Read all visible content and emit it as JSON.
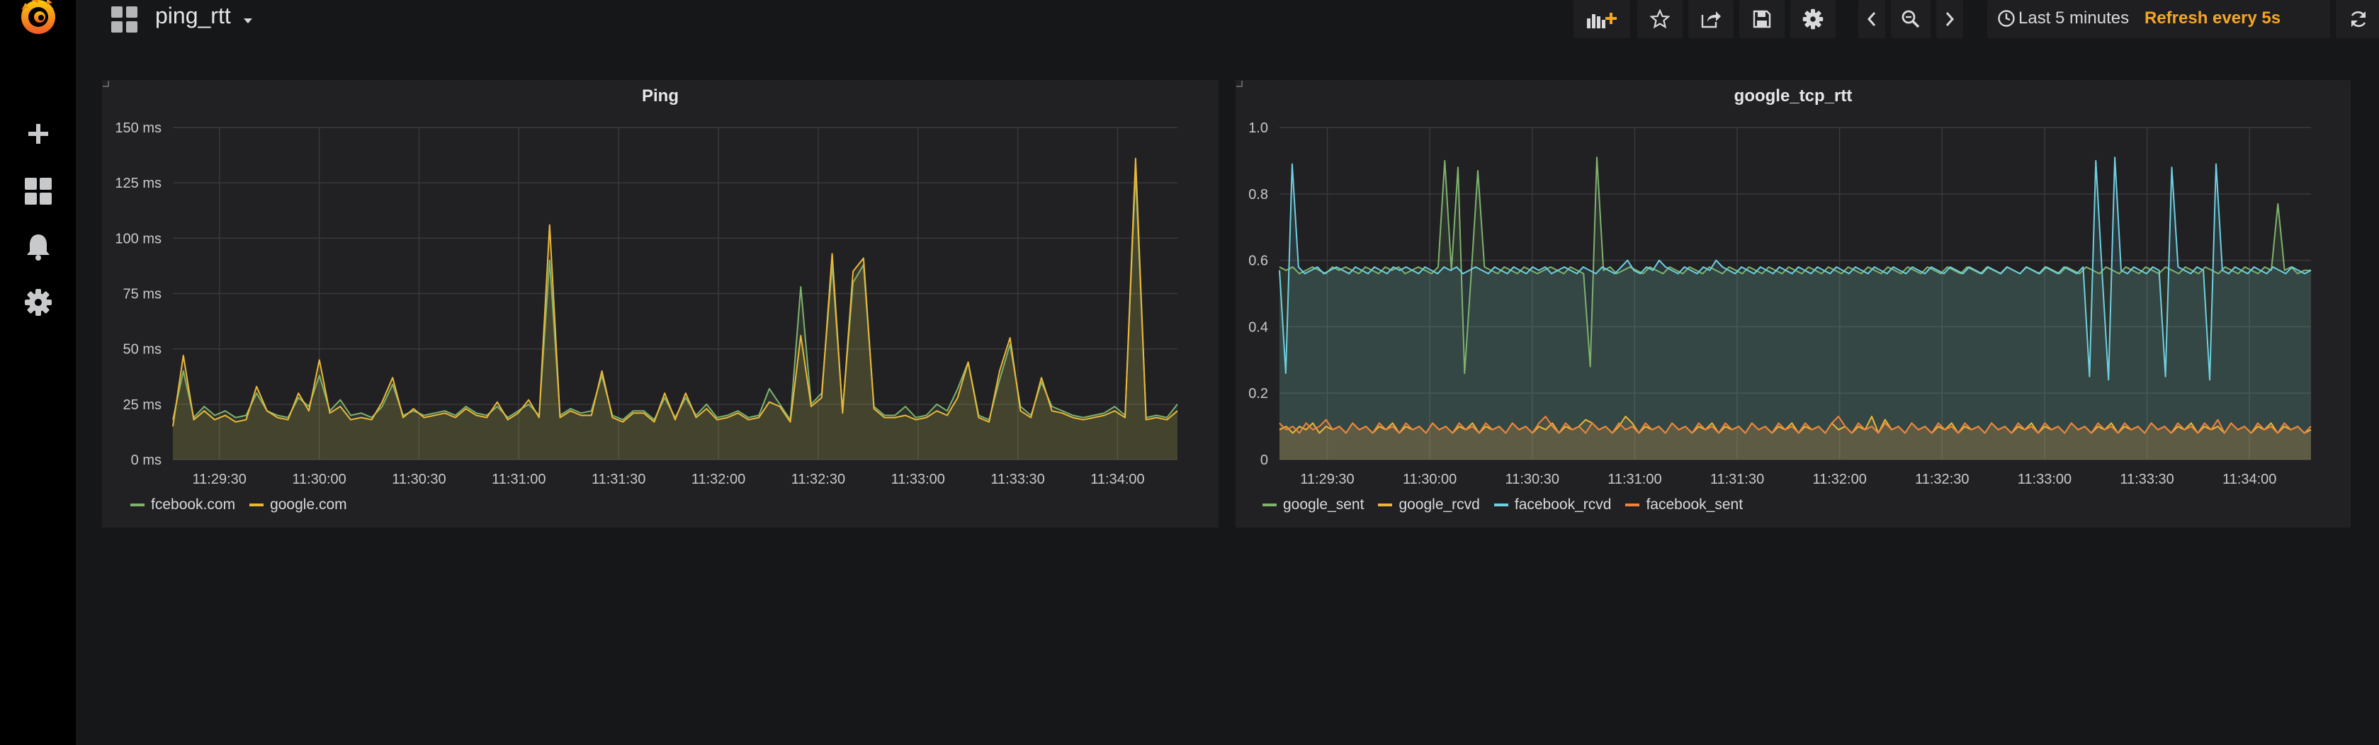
{
  "navbar": {
    "dashboard_title": "ping_rtt",
    "time_range": "Last 5 minutes",
    "refresh": "Refresh every 5s"
  },
  "sidemenu": {
    "items": [
      "grafana-logo-icon",
      "plus-icon",
      "dashboards-icon",
      "bell-icon",
      "gear-icon"
    ]
  },
  "colors": {
    "green": "#7eb26d",
    "yellow": "#eab839",
    "cyan": "#6ed0e0",
    "orange": "#ef843c",
    "accent": "#f5a623"
  },
  "panels": [
    {
      "title": "Ping",
      "legend": [
        {
          "name": "fcebook.com",
          "color": "#7eb26d"
        },
        {
          "name": "google.com",
          "color": "#eab839"
        }
      ],
      "chart_data": {
        "type": "line",
        "ylabel_ticks": [
          "0 ms",
          "25 ms",
          "50 ms",
          "75 ms",
          "100 ms",
          "125 ms",
          "150 ms"
        ],
        "ylim": [
          0,
          150
        ],
        "xlim": [
          "11:29:16",
          "11:34:18"
        ],
        "x_ticks": [
          "11:29:30",
          "11:30:00",
          "11:30:30",
          "11:31:00",
          "11:31:30",
          "11:32:00",
          "11:32:30",
          "11:33:00",
          "11:33:30",
          "11:34:00"
        ],
        "grid": true,
        "fill": true,
        "x_interval_seconds": 3,
        "series": [
          {
            "name": "fcebook.com",
            "color": "#7eb26d",
            "values": [
              18,
              40,
              19,
              24,
              20,
              22,
              19,
              20,
              30,
              22,
              20,
              19,
              28,
              24,
              38,
              22,
              27,
              20,
              21,
              19,
              24,
              34,
              20,
              22,
              20,
              21,
              22,
              20,
              24,
              21,
              20,
              24,
              19,
              22,
              25,
              20,
              90,
              20,
              23,
              21,
              22,
              38,
              20,
              18,
              22,
              22,
              18,
              28,
              19,
              28,
              20,
              25,
              19,
              20,
              22,
              19,
              20,
              32,
              25,
              18,
              78,
              25,
              30,
              88,
              22,
              80,
              88,
              24,
              20,
              20,
              24,
              19,
              20,
              25,
              22,
              32,
              44,
              20,
              18,
              36,
              52,
              24,
              20,
              35,
              24,
              22,
              20,
              19,
              20,
              21,
              24,
              20,
              130,
              19,
              20,
              19,
              25
            ]
          },
          {
            "name": "google.com",
            "color": "#eab839",
            "values": [
              15,
              47,
              18,
              22,
              18,
              20,
              17,
              18,
              33,
              22,
              19,
              18,
              30,
              22,
              45,
              21,
              24,
              18,
              19,
              18,
              26,
              37,
              19,
              23,
              19,
              20,
              21,
              19,
              23,
              20,
              19,
              26,
              18,
              21,
              27,
              19,
              106,
              19,
              22,
              20,
              20,
              40,
              19,
              17,
              21,
              21,
              17,
              30,
              18,
              30,
              19,
              23,
              18,
              19,
              21,
              18,
              19,
              26,
              24,
              17,
              56,
              24,
              28,
              93,
              21,
              85,
              91,
              23,
              19,
              19,
              20,
              18,
              19,
              22,
              20,
              28,
              44,
              19,
              17,
              40,
              55,
              22,
              19,
              37,
              22,
              21,
              19,
              18,
              19,
              20,
              22,
              19,
              136,
              18,
              19,
              18,
              22
            ]
          }
        ]
      }
    },
    {
      "title": "google_tcp_rtt",
      "legend": [
        {
          "name": "google_sent",
          "color": "#7eb26d"
        },
        {
          "name": "google_rcvd",
          "color": "#eab839"
        },
        {
          "name": "facebook_rcvd",
          "color": "#6ed0e0"
        },
        {
          "name": "facebook_sent",
          "color": "#ef843c"
        }
      ],
      "chart_data": {
        "type": "line",
        "ylabel_ticks": [
          "0",
          "0.2",
          "0.4",
          "0.6",
          "0.8",
          "1.0"
        ],
        "ylim": [
          0,
          1.0
        ],
        "xlim": [
          "11:29:16",
          "11:34:18"
        ],
        "x_ticks": [
          "11:29:30",
          "11:30:00",
          "11:30:30",
          "11:31:00",
          "11:31:30",
          "11:32:00",
          "11:32:30",
          "11:33:00",
          "11:33:30",
          "11:34:00"
        ],
        "grid": true,
        "fill": true,
        "x_interval_seconds": 2,
        "series": [
          {
            "name": "google_sent",
            "color": "#7eb26d",
            "values": [
              0.58,
              0.57,
              0.58,
              0.56,
              0.57,
              0.58,
              0.57,
              0.56,
              0.58,
              0.57,
              0.58,
              0.57,
              0.56,
              0.58,
              0.57,
              0.56,
              0.58,
              0.57,
              0.58,
              0.56,
              0.57,
              0.58,
              0.57,
              0.56,
              0.58,
              0.9,
              0.57,
              0.88,
              0.26,
              0.56,
              0.87,
              0.58,
              0.57,
              0.56,
              0.58,
              0.57,
              0.56,
              0.58,
              0.57,
              0.56,
              0.57,
              0.58,
              0.57,
              0.56,
              0.58,
              0.57,
              0.56,
              0.28,
              0.91,
              0.57,
              0.58,
              0.56,
              0.57,
              0.58,
              0.57,
              0.56,
              0.58,
              0.57,
              0.56,
              0.58,
              0.57,
              0.56,
              0.58,
              0.57,
              0.56,
              0.58,
              0.57,
              0.56,
              0.58,
              0.57,
              0.56,
              0.58,
              0.57,
              0.56,
              0.58,
              0.57,
              0.56,
              0.58,
              0.57,
              0.56,
              0.58,
              0.57,
              0.56,
              0.58,
              0.57,
              0.56,
              0.58,
              0.57,
              0.56,
              0.58,
              0.57,
              0.56,
              0.58,
              0.57,
              0.56,
              0.58,
              0.57,
              0.56,
              0.58,
              0.57,
              0.56,
              0.58,
              0.57,
              0.56,
              0.58,
              0.57,
              0.56,
              0.58,
              0.57,
              0.56,
              0.58,
              0.57,
              0.56,
              0.58,
              0.57,
              0.56,
              0.58,
              0.57,
              0.56,
              0.58,
              0.57,
              0.56,
              0.58,
              0.57,
              0.56,
              0.58,
              0.57,
              0.56,
              0.58,
              0.57,
              0.56,
              0.58,
              0.57,
              0.56,
              0.58,
              0.57,
              0.56,
              0.58,
              0.57,
              0.56,
              0.58,
              0.57,
              0.56,
              0.58,
              0.57,
              0.56,
              0.58,
              0.57,
              0.56,
              0.58,
              0.57,
              0.77,
              0.57,
              0.58,
              0.56,
              0.57,
              0.57
            ]
          },
          {
            "name": "google_rcvd",
            "color": "#eab839",
            "values": [
              0.09,
              0.1,
              0.08,
              0.1,
              0.09,
              0.11,
              0.08,
              0.1,
              0.09,
              0.1,
              0.08,
              0.11,
              0.09,
              0.1,
              0.08,
              0.1,
              0.09,
              0.11,
              0.08,
              0.1,
              0.09,
              0.1,
              0.08,
              0.11,
              0.09,
              0.1,
              0.08,
              0.1,
              0.09,
              0.11,
              0.08,
              0.1,
              0.09,
              0.1,
              0.08,
              0.11,
              0.09,
              0.1,
              0.08,
              0.1,
              0.09,
              0.11,
              0.08,
              0.1,
              0.09,
              0.1,
              0.12,
              0.11,
              0.09,
              0.1,
              0.08,
              0.1,
              0.13,
              0.11,
              0.08,
              0.1,
              0.09,
              0.1,
              0.08,
              0.11,
              0.09,
              0.1,
              0.08,
              0.1,
              0.09,
              0.11,
              0.08,
              0.1,
              0.09,
              0.1,
              0.08,
              0.11,
              0.09,
              0.1,
              0.08,
              0.1,
              0.09,
              0.11,
              0.08,
              0.1,
              0.09,
              0.1,
              0.08,
              0.11,
              0.09,
              0.1,
              0.08,
              0.1,
              0.09,
              0.13,
              0.08,
              0.12,
              0.09,
              0.1,
              0.08,
              0.11,
              0.09,
              0.1,
              0.08,
              0.1,
              0.09,
              0.11,
              0.08,
              0.1,
              0.09,
              0.1,
              0.08,
              0.11,
              0.09,
              0.1,
              0.08,
              0.1,
              0.09,
              0.11,
              0.08,
              0.1,
              0.09,
              0.1,
              0.08,
              0.11,
              0.09,
              0.1,
              0.08,
              0.1,
              0.09,
              0.11,
              0.08,
              0.1,
              0.09,
              0.1,
              0.08,
              0.11,
              0.09,
              0.1,
              0.08,
              0.1,
              0.09,
              0.11,
              0.08,
              0.1,
              0.09,
              0.1,
              0.08,
              0.11,
              0.09,
              0.1,
              0.08,
              0.1,
              0.09,
              0.11,
              0.08,
              0.1,
              0.09,
              0.1,
              0.08,
              0.09
            ]
          },
          {
            "name": "facebook_rcvd",
            "color": "#6ed0e0",
            "values": [
              0.57,
              0.26,
              0.89,
              0.58,
              0.56,
              0.57,
              0.58,
              0.56,
              0.57,
              0.58,
              0.57,
              0.56,
              0.58,
              0.57,
              0.56,
              0.58,
              0.57,
              0.56,
              0.58,
              0.57,
              0.58,
              0.57,
              0.56,
              0.58,
              0.57,
              0.56,
              0.58,
              0.57,
              0.58,
              0.56,
              0.57,
              0.58,
              0.57,
              0.56,
              0.58,
              0.57,
              0.56,
              0.58,
              0.57,
              0.56,
              0.58,
              0.57,
              0.58,
              0.56,
              0.57,
              0.58,
              0.57,
              0.56,
              0.58,
              0.57,
              0.56,
              0.58,
              0.57,
              0.56,
              0.58,
              0.6,
              0.57,
              0.56,
              0.58,
              0.57,
              0.6,
              0.58,
              0.57,
              0.56,
              0.58,
              0.57,
              0.56,
              0.58,
              0.57,
              0.6,
              0.58,
              0.57,
              0.56,
              0.58,
              0.57,
              0.56,
              0.58,
              0.57,
              0.56,
              0.58,
              0.57,
              0.56,
              0.58,
              0.57,
              0.56,
              0.58,
              0.57,
              0.56,
              0.58,
              0.57,
              0.56,
              0.58,
              0.57,
              0.56,
              0.58,
              0.57,
              0.56,
              0.58,
              0.57,
              0.56,
              0.58,
              0.57,
              0.56,
              0.58,
              0.57,
              0.56,
              0.58,
              0.57,
              0.56,
              0.58,
              0.57,
              0.56,
              0.58,
              0.57,
              0.56,
              0.58,
              0.57,
              0.56,
              0.58,
              0.57,
              0.56,
              0.58,
              0.57,
              0.56,
              0.58,
              0.57,
              0.56,
              0.58,
              0.25,
              0.9,
              0.56,
              0.24,
              0.91,
              0.57,
              0.56,
              0.58,
              0.57,
              0.56,
              0.58,
              0.57,
              0.25,
              0.88,
              0.58,
              0.57,
              0.56,
              0.58,
              0.57,
              0.24,
              0.89,
              0.57,
              0.56,
              0.58,
              0.57,
              0.56,
              0.58,
              0.57,
              0.56,
              0.58,
              0.57,
              0.56,
              0.58,
              0.57,
              0.56,
              0.57
            ]
          },
          {
            "name": "facebook_sent",
            "color": "#ef843c",
            "values": [
              0.11,
              0.09,
              0.1,
              0.08,
              0.11,
              0.09,
              0.1,
              0.12,
              0.09,
              0.1,
              0.08,
              0.11,
              0.09,
              0.1,
              0.08,
              0.11,
              0.09,
              0.1,
              0.08,
              0.11,
              0.09,
              0.1,
              0.08,
              0.11,
              0.09,
              0.1,
              0.08,
              0.11,
              0.09,
              0.1,
              0.08,
              0.11,
              0.09,
              0.1,
              0.08,
              0.11,
              0.09,
              0.1,
              0.08,
              0.11,
              0.13,
              0.1,
              0.08,
              0.11,
              0.09,
              0.1,
              0.08,
              0.11,
              0.09,
              0.1,
              0.08,
              0.11,
              0.09,
              0.1,
              0.08,
              0.11,
              0.09,
              0.1,
              0.08,
              0.11,
              0.09,
              0.1,
              0.08,
              0.11,
              0.09,
              0.1,
              0.08,
              0.11,
              0.09,
              0.1,
              0.08,
              0.11,
              0.09,
              0.1,
              0.08,
              0.11,
              0.09,
              0.1,
              0.08,
              0.11,
              0.09,
              0.1,
              0.08,
              0.11,
              0.13,
              0.1,
              0.08,
              0.11,
              0.09,
              0.1,
              0.08,
              0.11,
              0.09,
              0.1,
              0.08,
              0.11,
              0.09,
              0.1,
              0.08,
              0.11,
              0.09,
              0.1,
              0.08,
              0.11,
              0.09,
              0.1,
              0.08,
              0.11,
              0.09,
              0.1,
              0.08,
              0.11,
              0.09,
              0.1,
              0.08,
              0.11,
              0.09,
              0.1,
              0.08,
              0.11,
              0.09,
              0.1,
              0.08,
              0.11,
              0.09,
              0.1,
              0.08,
              0.11,
              0.09,
              0.1,
              0.08,
              0.11,
              0.09,
              0.1,
              0.08,
              0.11,
              0.09,
              0.1,
              0.08,
              0.11,
              0.09,
              0.12,
              0.08,
              0.11,
              0.09,
              0.1,
              0.08,
              0.11,
              0.09,
              0.1,
              0.08,
              0.11,
              0.09,
              0.1,
              0.08,
              0.1
            ]
          }
        ]
      }
    }
  ]
}
